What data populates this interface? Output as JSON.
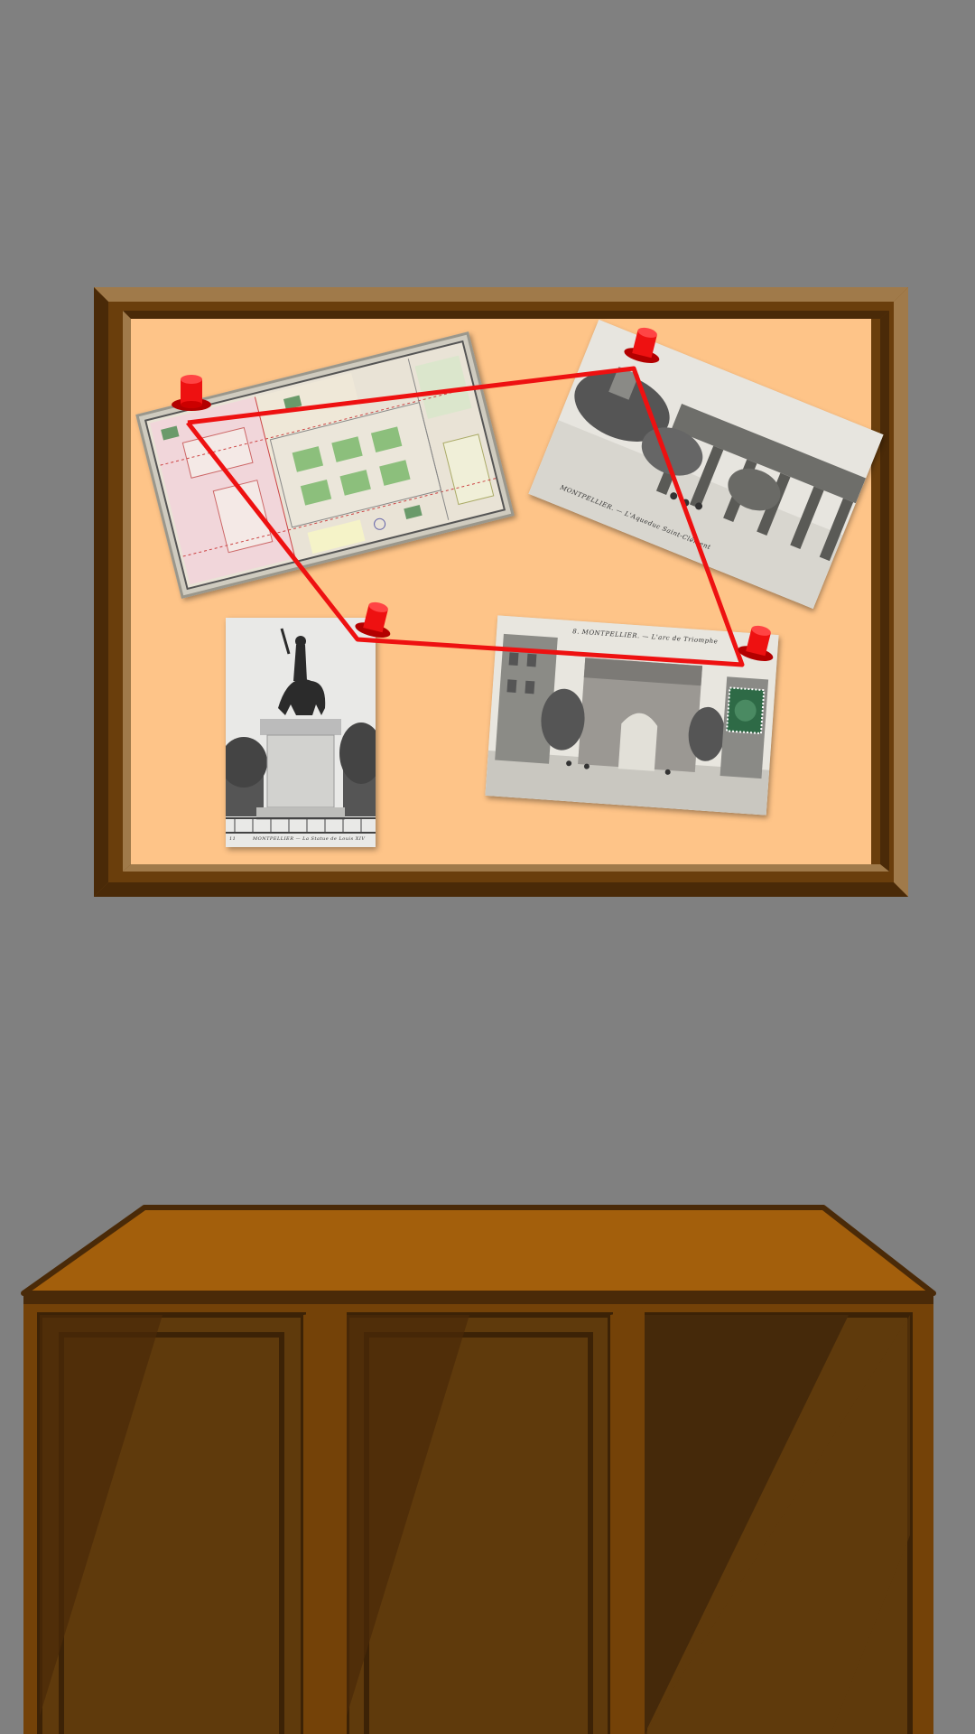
{
  "scene": {
    "colors": {
      "wall": "#808080",
      "frame": "#7a4a12",
      "frame_dark": "#4a2a08",
      "frame_light": "#a07a4a",
      "cork": "#fec488",
      "string": "#ee1111",
      "pin": "#ee1111",
      "cabinet_top": "#a35f0c",
      "cabinet_body": "#744208",
      "cabinet_door": "#5f3a0c"
    },
    "pins": [
      {
        "name": "pin-map"
      },
      {
        "name": "pin-aqueduct"
      },
      {
        "name": "pin-statue"
      },
      {
        "name": "pin-arch"
      }
    ],
    "cards": {
      "map": {
        "subject": "old city map with gardens"
      },
      "aqueduct": {
        "caption": "MONTPELLIER. — L'Aqueduc Saint-Clément"
      },
      "statue": {
        "caption": "MONTPELLIER — La Statue de Louis XIV",
        "number": "11"
      },
      "arch": {
        "caption": "8. MONTPELLIER. — L'arc de Triomphe"
      }
    },
    "string_order": [
      "pin-map",
      "pin-aqueduct",
      "pin-arch",
      "pin-statue"
    ]
  }
}
